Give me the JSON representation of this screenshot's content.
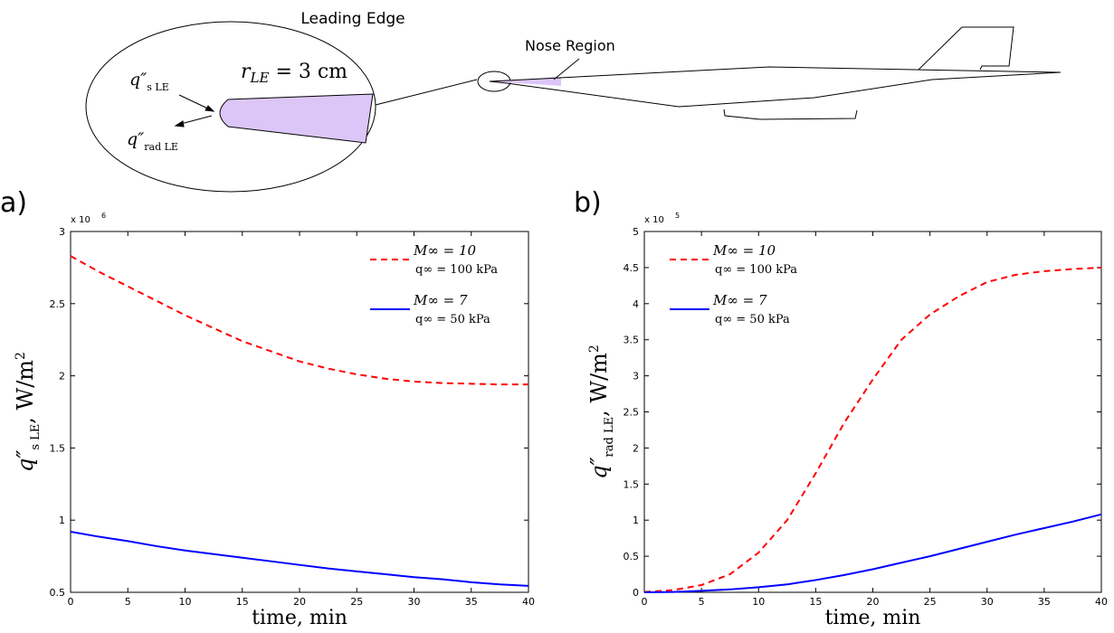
{
  "diagram": {
    "leading_edge_title": "Leading Edge",
    "radius_label": "r",
    "radius_sub": "LE",
    "radius_value": " = 3 cm",
    "qs_symbol": "q″",
    "qs_sub": "s LE",
    "qrad_symbol": "q″",
    "qrad_sub": "rad LE",
    "nose_label": "Nose Region"
  },
  "chart_data": [
    {
      "type": "line",
      "panel": "a)",
      "xlabel": "time, min",
      "ylabel": {
        "symbol": "q″",
        "subscript": "s LE",
        "unit": ", W/m",
        "unit_power": "2"
      },
      "y_exponent": {
        "base": "x 10",
        "power": "6"
      },
      "x": [
        0,
        2.5,
        5,
        7.5,
        10,
        12.5,
        15,
        17.5,
        20,
        22.5,
        25,
        27.5,
        30,
        32.5,
        35,
        37.5,
        40
      ],
      "series": [
        {
          "name": "M∞ = 10",
          "subname": "q∞ = 100 kPa",
          "color": "#ff0000",
          "dashed": true,
          "values": [
            2.83,
            2.72,
            2.62,
            2.52,
            2.42,
            2.33,
            2.24,
            2.17,
            2.1,
            2.05,
            2.01,
            1.98,
            1.96,
            1.95,
            1.945,
            1.94,
            1.94
          ]
        },
        {
          "name": "M∞ = 7",
          "subname": "q∞ = 50 kPa",
          "color": "#0000ff",
          "dashed": false,
          "values": [
            0.92,
            0.885,
            0.855,
            0.82,
            0.79,
            0.765,
            0.74,
            0.715,
            0.69,
            0.665,
            0.645,
            0.625,
            0.605,
            0.59,
            0.57,
            0.555,
            0.545
          ]
        }
      ],
      "xlim": [
        0,
        40
      ],
      "xticks": [
        0,
        5,
        10,
        15,
        20,
        25,
        30,
        35,
        40
      ],
      "ylim": [
        0.5,
        3
      ],
      "yticks": [
        0.5,
        1,
        1.5,
        2,
        2.5,
        3
      ],
      "legend": "upper right"
    },
    {
      "type": "line",
      "panel": "b)",
      "xlabel": "time, min",
      "ylabel": {
        "symbol": "q″",
        "subscript": "rad LE",
        "unit": ", W/m",
        "unit_power": "2"
      },
      "y_exponent": {
        "base": "x 10",
        "power": "5"
      },
      "x": [
        0,
        2.5,
        5,
        7.5,
        10,
        12.5,
        15,
        17.5,
        20,
        22.5,
        25,
        27.5,
        30,
        32.5,
        35,
        37.5,
        40
      ],
      "series": [
        {
          "name": "M∞ = 10",
          "subname": "q∞ = 100 kPa",
          "color": "#ff0000",
          "dashed": true,
          "values": [
            0.005,
            0.03,
            0.1,
            0.25,
            0.55,
            1.0,
            1.65,
            2.35,
            2.95,
            3.5,
            3.85,
            4.1,
            4.3,
            4.4,
            4.45,
            4.48,
            4.5
          ]
        },
        {
          "name": "M∞ = 7",
          "subname": "q∞ = 50 kPa",
          "color": "#0000ff",
          "dashed": false,
          "values": [
            0,
            0.005,
            0.02,
            0.04,
            0.07,
            0.11,
            0.17,
            0.24,
            0.32,
            0.41,
            0.5,
            0.6,
            0.7,
            0.8,
            0.89,
            0.98,
            1.08
          ]
        }
      ],
      "xlim": [
        0,
        40
      ],
      "xticks": [
        0,
        5,
        10,
        15,
        20,
        25,
        30,
        35,
        40
      ],
      "ylim": [
        0,
        5
      ],
      "yticks": [
        0,
        0.5,
        1,
        1.5,
        2,
        2.5,
        3,
        3.5,
        4,
        4.5,
        5
      ],
      "legend": "upper left"
    }
  ]
}
